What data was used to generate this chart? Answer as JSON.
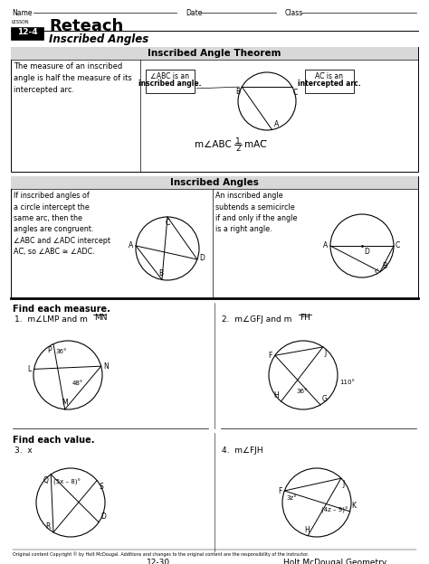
{
  "title": "Reteach",
  "subtitle": "Inscribed Angles",
  "lesson": "12-4",
  "bg_color": "#ffffff",
  "border_color": "#000000",
  "text_color": "#000000",
  "page_num": "12-30",
  "publisher": "Holt McDougal Geometry",
  "header_gray": "#d8d8d8",
  "figsize": [
    4.74,
    6.24
  ],
  "dpi": 100
}
